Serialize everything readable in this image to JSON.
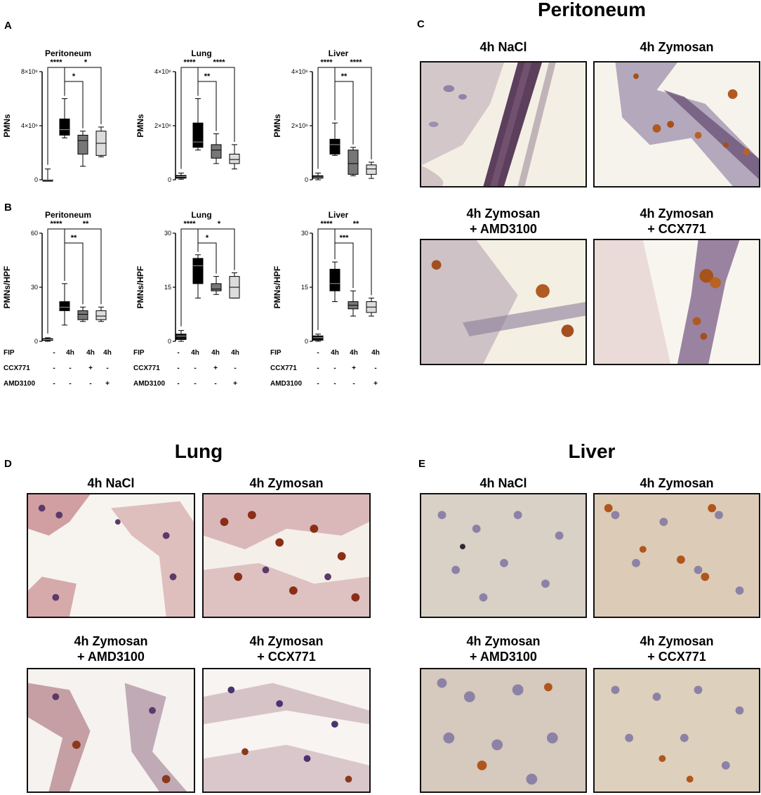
{
  "panels": {
    "A": "A",
    "B": "B",
    "C": "C",
    "D": "D",
    "E": "E"
  },
  "sections": {
    "peritoneum": "Peritoneum",
    "lung": "Lung",
    "liver": "Liver"
  },
  "image_titles": {
    "nacl": "4h NaCl",
    "zymosan": "4h Zymosan",
    "zym_amd_1": "4h Zymosan",
    "zym_amd_2": "+ AMD3100",
    "zym_ccx_1": "4h Zymosan",
    "zym_ccx_2": "+ CCX771"
  },
  "treatment_table": {
    "rows": [
      {
        "label": "FIP",
        "cells": [
          "-",
          "4h",
          "4h",
          "4h"
        ]
      },
      {
        "label": "CCX771",
        "cells": [
          "-",
          "-",
          "+",
          "-"
        ]
      },
      {
        "label": "AMD3100",
        "cells": [
          "-",
          "-",
          "-",
          "+"
        ]
      }
    ]
  },
  "colors": {
    "ctrl": "#111111",
    "zym": "#000000",
    "ccx": "#777777",
    "amd": "#dcdcdc",
    "amd_b": "#ffffff"
  },
  "chart_data": [
    {
      "type": "box",
      "panel": "A",
      "title": "Peritoneum",
      "ylabel": "PMNs",
      "yticks": [
        "0",
        "4×10⁶",
        "8×10⁶"
      ],
      "ylim": [
        0,
        8000000
      ],
      "boxes": [
        {
          "min": 0,
          "q1": 0,
          "med": 0,
          "q3": 0,
          "max": 800000
        },
        {
          "min": 3100000,
          "q1": 3300000,
          "med": 3700000,
          "q3": 4500000,
          "max": 6000000
        },
        {
          "min": 1000000,
          "q1": 1900000,
          "med": 2900000,
          "q3": 3300000,
          "max": 3600000
        },
        {
          "min": 1700000,
          "q1": 1800000,
          "med": 2700000,
          "q3": 3600000,
          "max": 3900000
        }
      ],
      "sig": [
        {
          "from": 0,
          "to": 1,
          "label": "****",
          "level": 0
        },
        {
          "from": 0,
          "to": 3,
          "label": "*",
          "level": 0
        },
        {
          "from": 1,
          "to": 2,
          "label": "*",
          "level": 1
        }
      ]
    },
    {
      "type": "box",
      "panel": "A",
      "title": "Lung",
      "ylabel": "PMNs",
      "yticks": [
        "0",
        "2×10⁶",
        "4×10⁶"
      ],
      "ylim": [
        0,
        4000000
      ],
      "boxes": [
        {
          "min": 20000,
          "q1": 60000,
          "med": 120000,
          "q3": 160000,
          "max": 250000
        },
        {
          "min": 1100000,
          "q1": 1200000,
          "med": 1400000,
          "q3": 2100000,
          "max": 3000000
        },
        {
          "min": 600000,
          "q1": 800000,
          "med": 1100000,
          "q3": 1300000,
          "max": 1700000
        },
        {
          "min": 400000,
          "q1": 600000,
          "med": 750000,
          "q3": 950000,
          "max": 1300000
        }
      ],
      "sig": [
        {
          "from": 0,
          "to": 1,
          "label": "****",
          "level": 0
        },
        {
          "from": 0,
          "to": 3,
          "label": "****",
          "level": 0
        },
        {
          "from": 1,
          "to": 2,
          "label": "**",
          "level": 1
        }
      ]
    },
    {
      "type": "box",
      "panel": "A",
      "title": "Liver",
      "ylabel": "PMNs",
      "yticks": [
        "0",
        "2×10⁶",
        "4×10⁶"
      ],
      "ylim": [
        0,
        4000000
      ],
      "boxes": [
        {
          "min": 0,
          "q1": 60000,
          "med": 100000,
          "q3": 150000,
          "max": 250000
        },
        {
          "min": 900000,
          "q1": 950000,
          "med": 1300000,
          "q3": 1500000,
          "max": 2100000
        },
        {
          "min": 150000,
          "q1": 200000,
          "med": 600000,
          "q3": 1100000,
          "max": 1200000
        },
        {
          "min": 50000,
          "q1": 200000,
          "med": 400000,
          "q3": 550000,
          "max": 650000
        }
      ],
      "sig": [
        {
          "from": 0,
          "to": 1,
          "label": "****",
          "level": 0
        },
        {
          "from": 0,
          "to": 3,
          "label": "****",
          "level": 0
        },
        {
          "from": 1,
          "to": 2,
          "label": "**",
          "level": 1
        }
      ]
    },
    {
      "type": "box",
      "panel": "B",
      "title": "Peritoneum",
      "ylabel": "PMNs/HPF",
      "yticks": [
        "0",
        "30",
        "60"
      ],
      "ylim": [
        0,
        60
      ],
      "boxes": [
        {
          "min": 0,
          "q1": 0.5,
          "med": 1,
          "q3": 1.5,
          "max": 2
        },
        {
          "min": 9,
          "q1": 17,
          "med": 19,
          "q3": 22,
          "max": 32
        },
        {
          "min": 11,
          "q1": 12,
          "med": 15,
          "q3": 17,
          "max": 19
        },
        {
          "min": 11,
          "q1": 12,
          "med": 14,
          "q3": 17,
          "max": 19
        }
      ],
      "sig": [
        {
          "from": 0,
          "to": 1,
          "label": "****",
          "level": 0
        },
        {
          "from": 0,
          "to": 3,
          "label": "**",
          "level": 0
        },
        {
          "from": 1,
          "to": 2,
          "label": "**",
          "level": 1
        }
      ]
    },
    {
      "type": "box",
      "panel": "B",
      "title": "Lung",
      "ylabel": "PMNs/HPF",
      "yticks": [
        "0",
        "15",
        "30"
      ],
      "ylim": [
        0,
        30
      ],
      "boxes": [
        {
          "min": 0,
          "q1": 0.5,
          "med": 1.5,
          "q3": 2,
          "max": 3
        },
        {
          "min": 12,
          "q1": 16,
          "med": 21,
          "q3": 23,
          "max": 24
        },
        {
          "min": 13,
          "q1": 14,
          "med": 14.5,
          "q3": 16,
          "max": 18
        },
        {
          "min": 12,
          "q1": 12,
          "med": 15,
          "q3": 18,
          "max": 19
        }
      ],
      "sig": [
        {
          "from": 0,
          "to": 1,
          "label": "****",
          "level": 0
        },
        {
          "from": 0,
          "to": 3,
          "label": "*",
          "level": 0
        },
        {
          "from": 1,
          "to": 2,
          "label": "*",
          "level": 1
        }
      ]
    },
    {
      "type": "box",
      "panel": "B",
      "title": "Liver",
      "ylabel": "PMNs/HPF",
      "yticks": [
        "0",
        "15",
        "30"
      ],
      "ylim": [
        0,
        30
      ],
      "boxes": [
        {
          "min": 0,
          "q1": 0.3,
          "med": 1,
          "q3": 1.5,
          "max": 2
        },
        {
          "min": 11,
          "q1": 14,
          "med": 16,
          "q3": 20,
          "max": 22
        },
        {
          "min": 7,
          "q1": 9,
          "med": 10,
          "q3": 11,
          "max": 14
        },
        {
          "min": 7,
          "q1": 8,
          "med": 9.5,
          "q3": 11,
          "max": 12
        }
      ],
      "sig": [
        {
          "from": 0,
          "to": 1,
          "label": "****",
          "level": 0
        },
        {
          "from": 0,
          "to": 3,
          "label": "**",
          "level": 0
        },
        {
          "from": 1,
          "to": 2,
          "label": "***",
          "level": 1
        }
      ]
    }
  ]
}
